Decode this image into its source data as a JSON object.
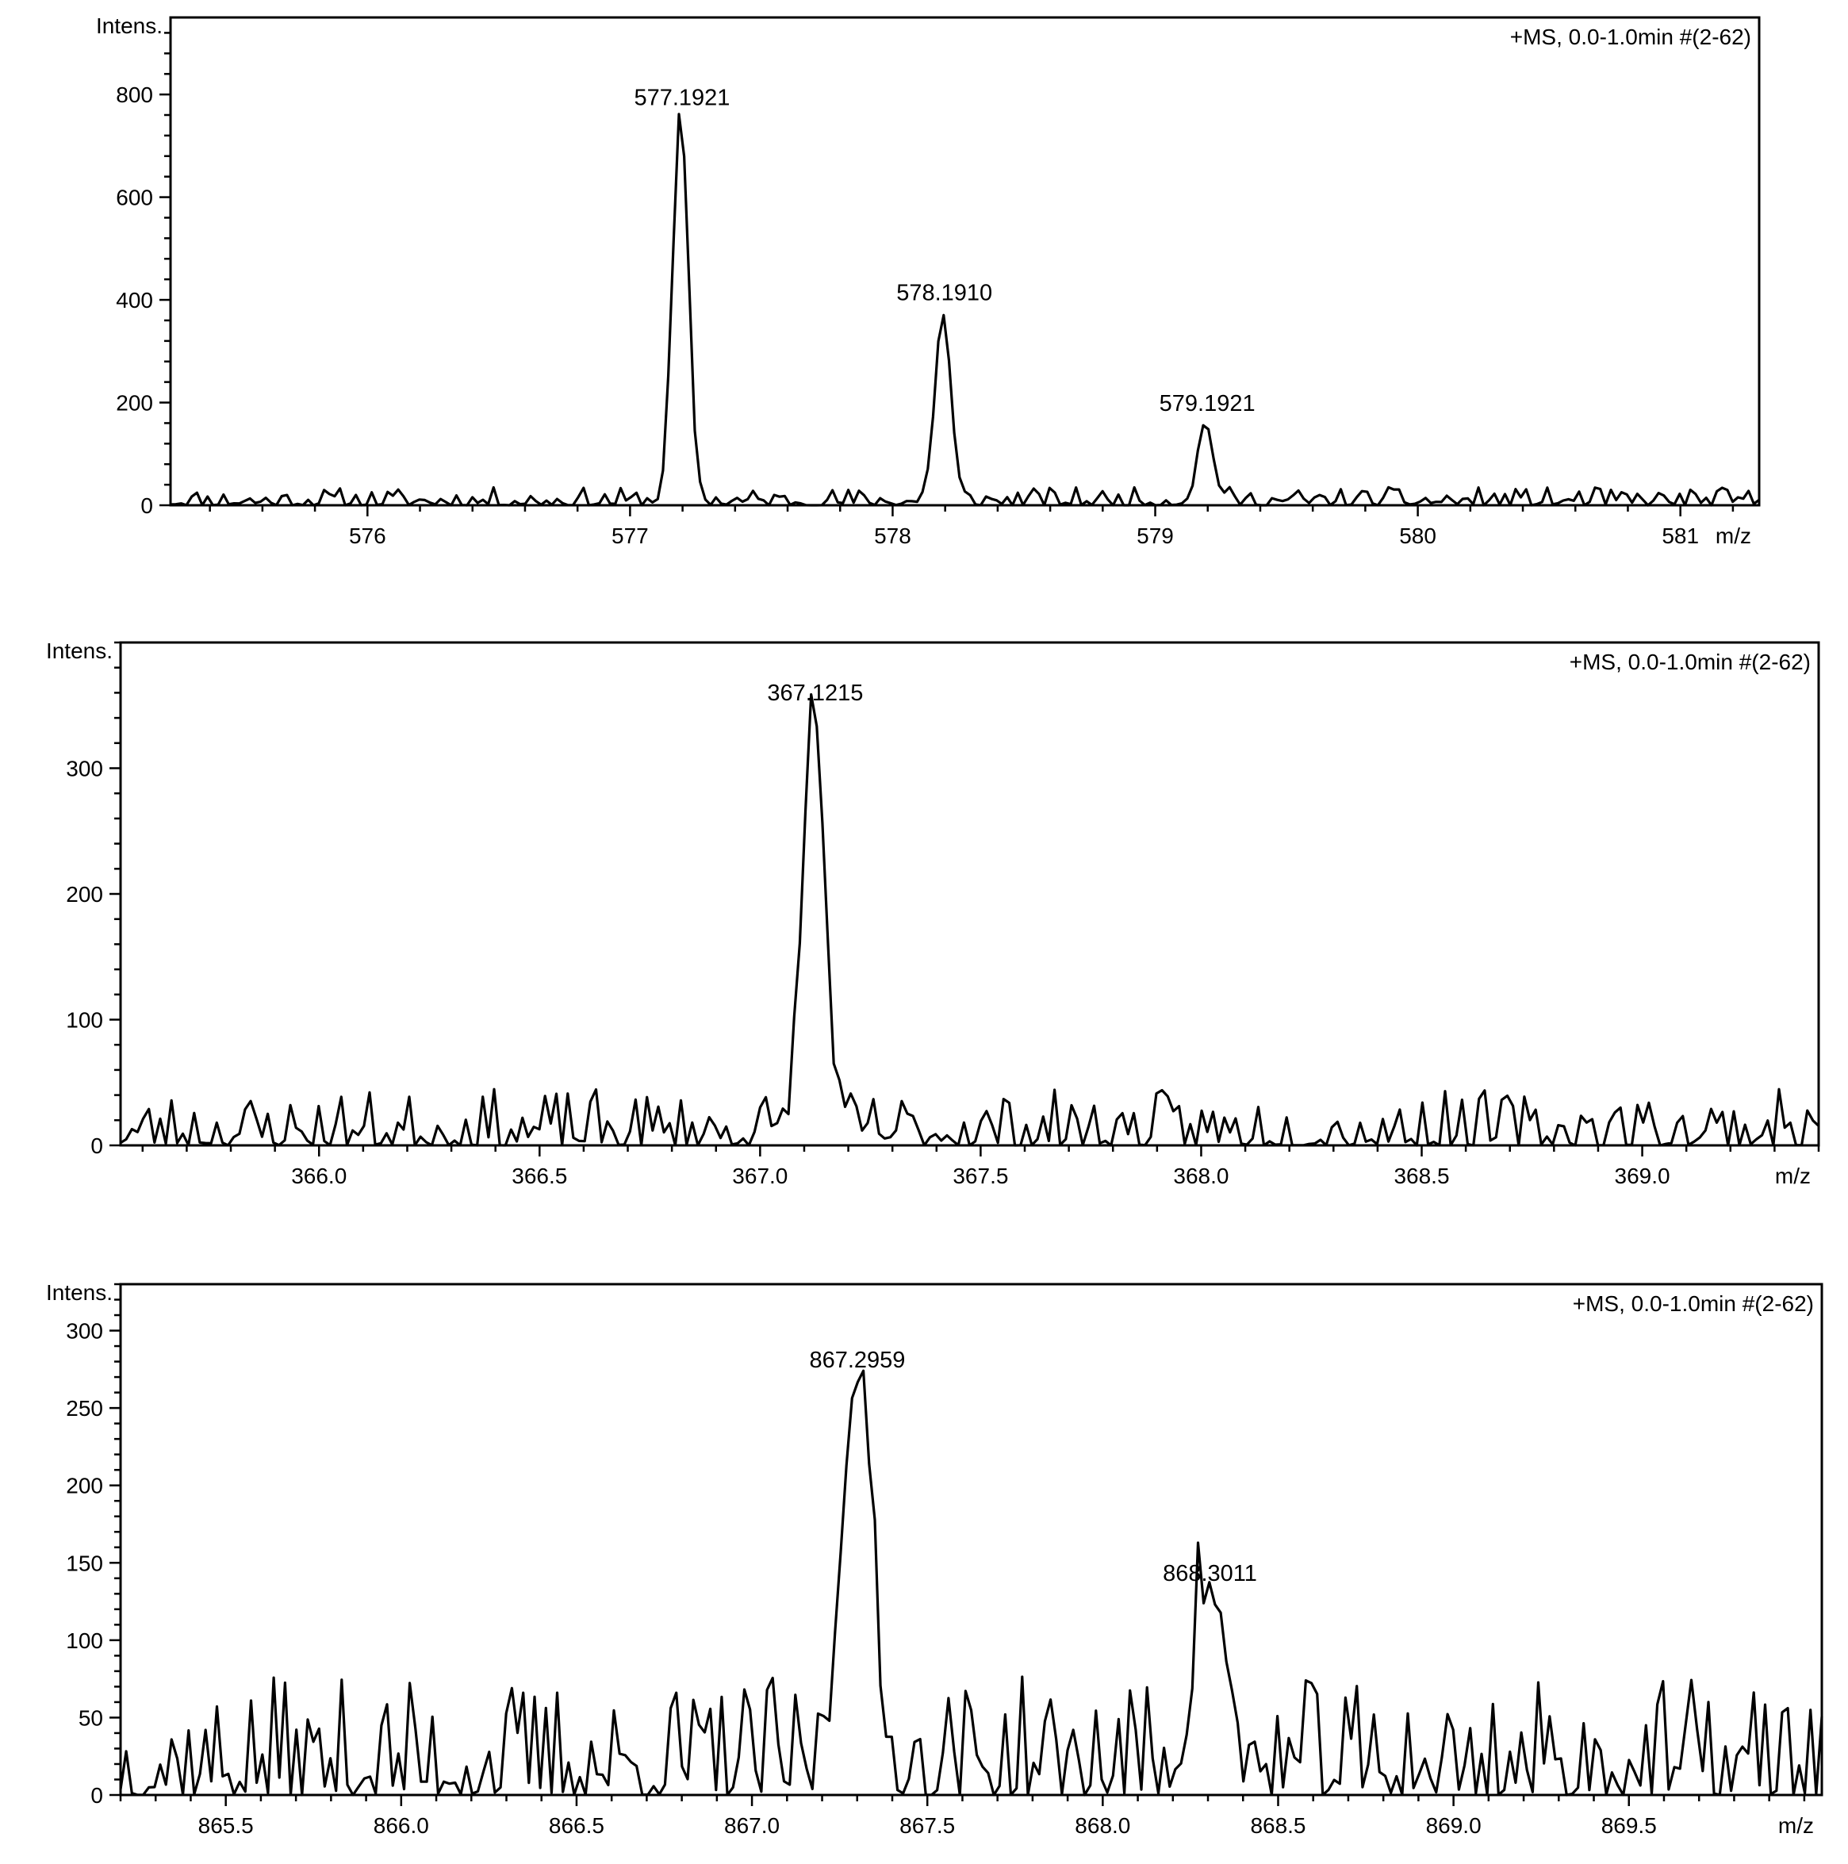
{
  "chart_data": [
    {
      "type": "line",
      "ylabel": "Intens.",
      "xlabel": "m/z",
      "info_text": "+MS, 0.0-1.0min #(2-62)",
      "xlim": [
        575.25,
        581.3
      ],
      "ylim": [
        0,
        950
      ],
      "x_ticks": [
        576,
        577,
        578,
        579,
        580,
        581
      ],
      "x_tick_labels": [
        "576",
        "577",
        "578",
        "579",
        "580",
        "581"
      ],
      "x_minor_step": 0.2,
      "y_ticks": [
        0,
        200,
        400,
        600,
        800
      ],
      "y_tick_labels": [
        "0",
        "200",
        "400",
        "600",
        "800"
      ],
      "y_minor_step": 40,
      "peaks": [
        {
          "x": 577.1921,
          "y": 745,
          "label": "577.1921"
        },
        {
          "x": 578.191,
          "y": 365,
          "label": "578.1910"
        },
        {
          "x": 579.1921,
          "y": 150,
          "label": "579.1921"
        }
      ],
      "noise_level": 22,
      "peak_width": 0.03,
      "seed": 11
    },
    {
      "type": "line",
      "ylabel": "Intens.",
      "xlabel": "m/z",
      "info_text": "+MS, 0.0-1.0min #(2-62)",
      "xlim": [
        365.55,
        369.4
      ],
      "ylim": [
        0,
        400
      ],
      "x_ticks": [
        366.0,
        366.5,
        367.0,
        367.5,
        368.0,
        368.5,
        369.0
      ],
      "x_tick_labels": [
        "366.0",
        "366.5",
        "367.0",
        "367.5",
        "368.0",
        "368.5",
        "369.0"
      ],
      "x_minor_step": 0.1,
      "y_ticks": [
        0,
        100,
        200,
        300
      ],
      "y_tick_labels": [
        "0",
        "100",
        "200",
        "300"
      ],
      "y_minor_step": 20,
      "peaks": [
        {
          "x": 367.1215,
          "y": 340,
          "label": "367.1215"
        }
      ],
      "noise_level": 28,
      "peak_width": 0.025,
      "seed": 23
    },
    {
      "type": "line",
      "ylabel": "Intens.",
      "xlabel": "m/z",
      "info_text": "+MS, 0.0-1.0min #(2-62)",
      "xlim": [
        865.2,
        870.05
      ],
      "ylim": [
        0,
        330
      ],
      "x_ticks": [
        865.5,
        866.0,
        866.5,
        867.0,
        867.5,
        868.0,
        868.5,
        869.0,
        869.5
      ],
      "x_tick_labels": [
        "865.5",
        "866.0",
        "866.5",
        "867.0",
        "867.5",
        "868.0",
        "868.5",
        "869.0",
        "869.5"
      ],
      "x_minor_step": 0.1,
      "y_ticks": [
        0,
        50,
        100,
        150,
        200,
        250,
        300
      ],
      "y_tick_labels": [
        "0",
        "50",
        "100",
        "150",
        "200",
        "250",
        "300"
      ],
      "y_minor_step": 10,
      "peaks": [
        {
          "x": 867.2959,
          "y": 265,
          "label": "867.2959"
        },
        {
          "x": 868.3011,
          "y": 127,
          "label": "868.3011"
        }
      ],
      "noise_level": 48,
      "peak_width": 0.04,
      "seed": 37
    }
  ]
}
